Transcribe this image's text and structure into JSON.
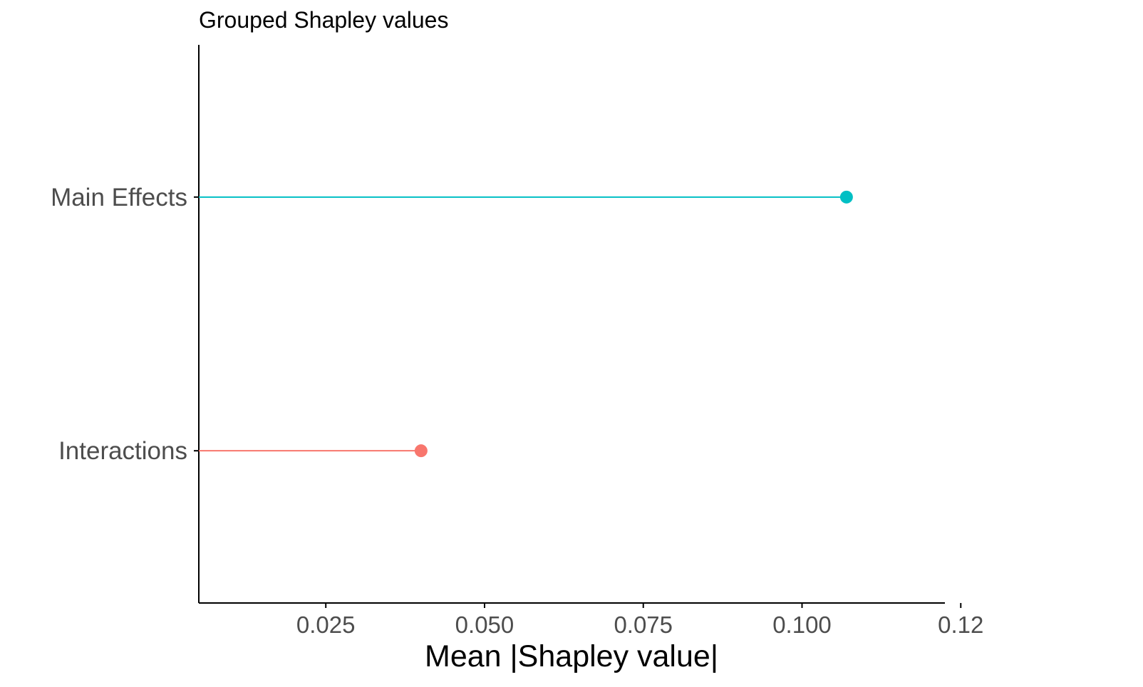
{
  "chart_data": {
    "type": "lollipop",
    "title": "Grouped Shapley values",
    "xlabel": "Mean |Shapley value|",
    "ylabel": "",
    "xlim": [
      0.005,
      0.1225
    ],
    "x_ticks": [
      "0.025",
      "0.050",
      "0.075",
      "0.100",
      "0.12"
    ],
    "x_tick_values": [
      0.025,
      0.05,
      0.075,
      0.1,
      0.125
    ],
    "categories": [
      "Interactions",
      "Main Effects"
    ],
    "values": [
      0.04,
      0.107
    ],
    "colors": [
      "#F8766D",
      "#00BFC4"
    ],
    "grid": false,
    "legend": "none"
  },
  "colors": {
    "axis": "#000000",
    "tick_label": "#4D4D4D"
  }
}
